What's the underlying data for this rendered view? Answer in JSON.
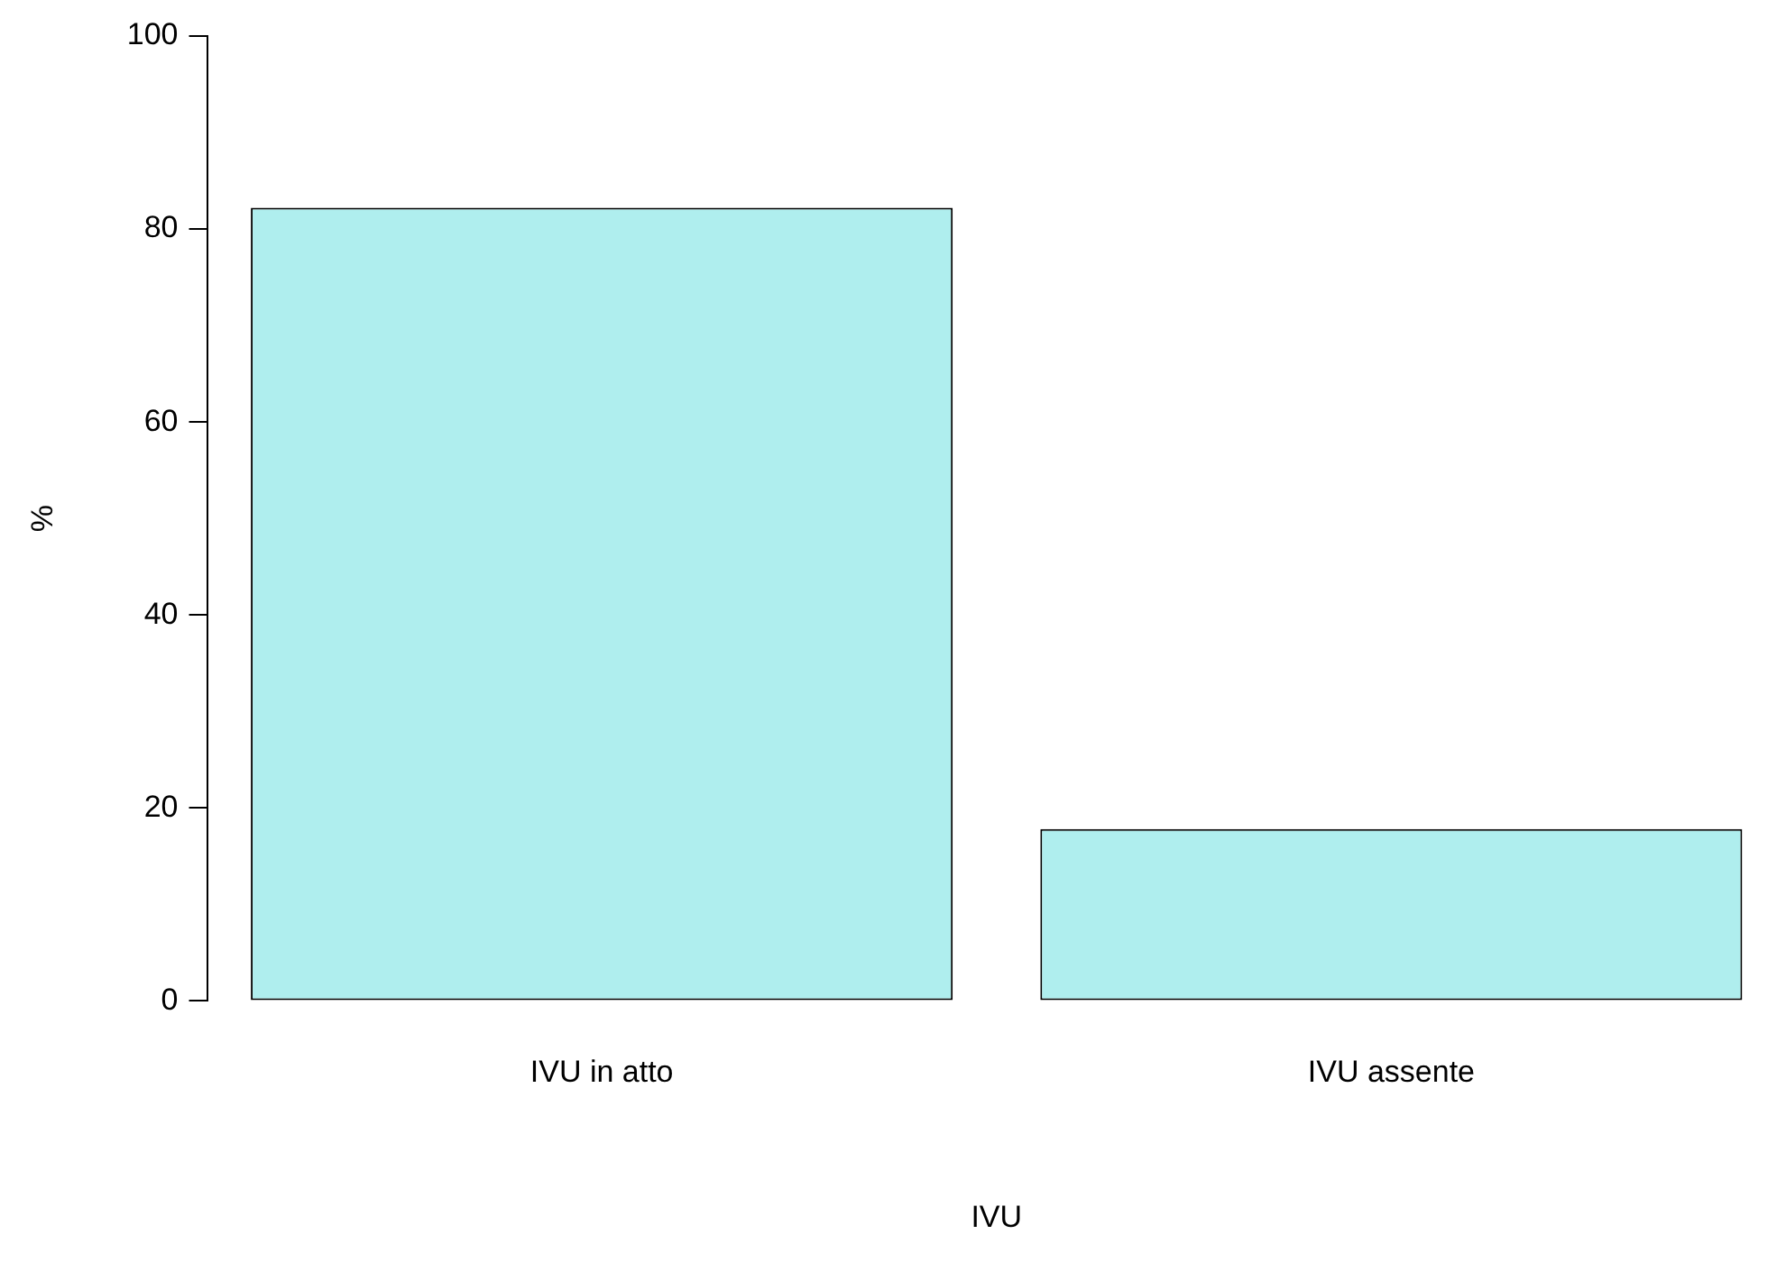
{
  "chart_data": {
    "type": "bar",
    "xlabel": "IVU",
    "ylabel": "%",
    "categories": [
      "IVU in atto",
      "IVU assente"
    ],
    "values": [
      82.2,
      17.8
    ],
    "color": "#afeeee",
    "ylim": [
      0,
      100
    ],
    "yticks": [
      0,
      20,
      40,
      60,
      80,
      100
    ],
    "grid": false,
    "legend": false
  }
}
